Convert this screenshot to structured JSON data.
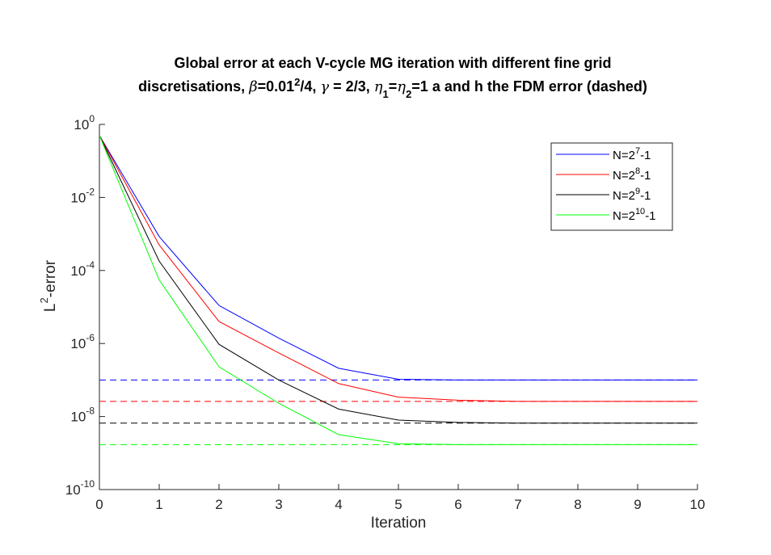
{
  "chart_data": {
    "type": "line",
    "title_line1": "Global error at each V-cycle MG iteration with different fine grid",
    "title_line2_parts": [
      {
        "text": "discretisations, ",
        "style": "normal"
      },
      {
        "text": "β",
        "style": "italic"
      },
      {
        "text": "=0.01",
        "style": "normal"
      },
      {
        "text": "2",
        "style": "sup"
      },
      {
        "text": "/4,  ",
        "style": "normal"
      },
      {
        "text": "γ",
        "style": "italic"
      },
      {
        "text": " = 2/3, ",
        "style": "normal"
      },
      {
        "text": "η",
        "style": "italic"
      },
      {
        "text": "1",
        "style": "sub"
      },
      {
        "text": "=",
        "style": "normal"
      },
      {
        "text": "η",
        "style": "italic"
      },
      {
        "text": "2",
        "style": "sub"
      },
      {
        "text": "=1 a and h the FDM error (dashed)",
        "style": "normal"
      }
    ],
    "xlabel": "Iteration",
    "ylabel_base": "L",
    "ylabel_sup": "2",
    "ylabel_rest": "-error",
    "x_scale": "linear",
    "y_scale": "log",
    "xlim": [
      0,
      10
    ],
    "ylim": [
      1e-10,
      1
    ],
    "xticks": [
      "0",
      "1",
      "2",
      "3",
      "4",
      "5",
      "6",
      "7",
      "8",
      "9",
      "10"
    ],
    "yticks": [
      {
        "base": "10",
        "exp": "0"
      },
      {
        "base": "10",
        "exp": "-2"
      },
      {
        "base": "10",
        "exp": "-4"
      },
      {
        "base": "10",
        "exp": "-6"
      },
      {
        "base": "10",
        "exp": "-8"
      },
      {
        "base": "10",
        "exp": "-10"
      }
    ],
    "grid": false,
    "legend_position": "top-right",
    "x": [
      0,
      1,
      2,
      3,
      4,
      5,
      6,
      7,
      8,
      9,
      10
    ],
    "series": [
      {
        "legend_base": "N=2",
        "legend_exp": "7",
        "legend_rest": "-1",
        "color": "#0000ff",
        "values": [
          0.5,
          0.00085,
          1.1e-05,
          1.4e-06,
          2.1e-07,
          1.05e-07,
          1e-07,
          1e-07,
          1e-07,
          1e-07,
          1e-07
        ],
        "fdm_error": 1e-07
      },
      {
        "legend_base": "N=2",
        "legend_exp": "8",
        "legend_rest": "-1",
        "color": "#ff0000",
        "values": [
          0.5,
          0.0005,
          4e-06,
          5.5e-07,
          8e-08,
          3.4e-08,
          2.8e-08,
          2.6e-08,
          2.6e-08,
          2.6e-08,
          2.6e-08
        ],
        "fdm_error": 2.6e-08
      },
      {
        "legend_base": "N=2",
        "legend_exp": "9",
        "legend_rest": "-1",
        "color": "#000000",
        "values": [
          0.5,
          0.00018,
          9.5e-07,
          1e-07,
          1.6e-08,
          8e-09,
          6.9e-09,
          6.6e-09,
          6.6e-09,
          6.6e-09,
          6.6e-09
        ],
        "fdm_error": 6.6e-09
      },
      {
        "legend_base": "N=2",
        "legend_exp": "10",
        "legend_rest": "-1",
        "color": "#00ff00",
        "values": [
          0.5,
          5.5e-05,
          2.3e-07,
          2.3e-08,
          3.2e-09,
          1.8e-09,
          1.7e-09,
          1.7e-09,
          1.7e-09,
          1.7e-09,
          1.7e-09
        ],
        "fdm_error": 1.7e-09
      }
    ]
  }
}
